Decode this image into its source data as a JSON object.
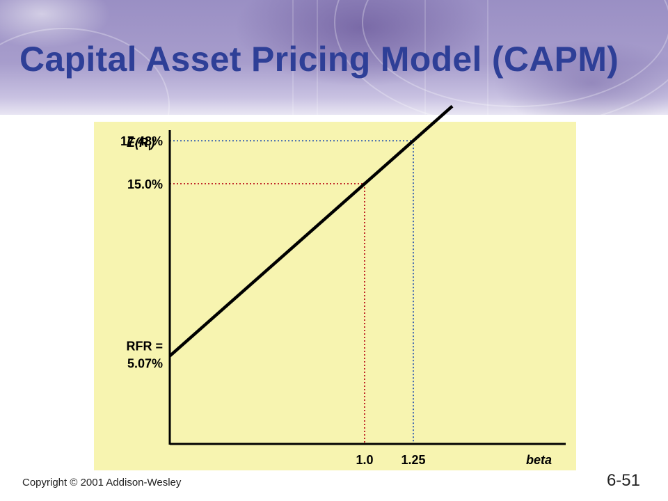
{
  "slide": {
    "title": "Capital Asset Pricing Model (CAPM)",
    "copyright": "Copyright © 2001 Addison-Wesley",
    "number": "6-51"
  },
  "chart_data": {
    "type": "line",
    "title": "",
    "xlabel": "beta",
    "ylabel": "E(Ri)",
    "series": [
      {
        "name": "",
        "x": [
          0,
          1.0,
          1.25,
          1.45
        ],
        "y": [
          5.07,
          15.0,
          17.48,
          19.47
        ]
      }
    ],
    "y_ticks": [
      {
        "value": 17.48,
        "label": "17.48%"
      },
      {
        "value": 15.0,
        "label": "15.0%"
      },
      {
        "value": 5.07,
        "label": "RFR =\n5.07%"
      }
    ],
    "x_ticks": [
      {
        "value": 1.0,
        "label": "1.0"
      },
      {
        "value": 1.25,
        "label": "1.25"
      }
    ],
    "reference_lines": [
      {
        "beta": 1.0,
        "return": 15.0,
        "color": "#c0282a"
      },
      {
        "beta": 1.25,
        "return": 17.48,
        "color": "#3a62b0"
      }
    ],
    "xlim": [
      0,
      1.5
    ],
    "ylim": [
      0,
      20
    ],
    "background": "#f7f4b0",
    "line_color": "#000000",
    "grid": false
  }
}
